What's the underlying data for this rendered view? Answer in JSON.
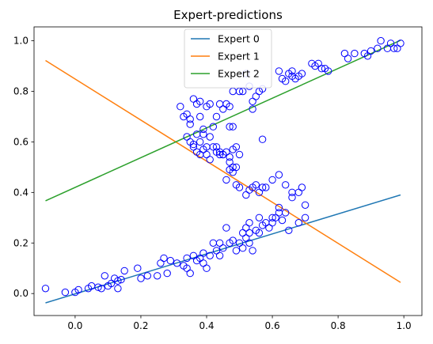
{
  "chart_data": {
    "type": "scatter",
    "title": "Expert-predictions",
    "xlabel": "",
    "ylabel": "",
    "xlim": [
      -0.125,
      1.055
    ],
    "ylim": [
      -0.087,
      1.055
    ],
    "x_ticks": [
      0.0,
      0.2,
      0.4,
      0.6,
      0.8,
      1.0
    ],
    "x_tick_labels": [
      "0.0",
      "0.2",
      "0.4",
      "0.6",
      "0.8",
      "1.0"
    ],
    "y_ticks": [
      0.0,
      0.2,
      0.4,
      0.6,
      0.8,
      1.0
    ],
    "y_tick_labels": [
      "0.0",
      "0.2",
      "0.4",
      "0.6",
      "0.8",
      "1.0"
    ],
    "grid": false,
    "legend_position": "top-center",
    "series": [
      {
        "name": "Expert 0",
        "kind": "line",
        "color": "#1f77b4",
        "x": [
          -0.09,
          0.99
        ],
        "y": [
          -0.037,
          0.39
        ]
      },
      {
        "name": "Expert 1",
        "kind": "line",
        "color": "#ff7f0e",
        "x": [
          -0.09,
          0.99
        ],
        "y": [
          0.922,
          0.044
        ]
      },
      {
        "name": "Expert 2",
        "kind": "line",
        "color": "#2ca02c",
        "x": [
          -0.09,
          0.99
        ],
        "y": [
          0.367,
          1.002
        ]
      },
      {
        "kind": "scatter",
        "marker": "open-circle",
        "color": "#0000ff",
        "points": [
          [
            -0.09,
            0.02
          ],
          [
            -0.03,
            0.005
          ],
          [
            0.0,
            0.005
          ],
          [
            0.01,
            0.015
          ],
          [
            0.04,
            0.02
          ],
          [
            0.05,
            0.03
          ],
          [
            0.07,
            0.025
          ],
          [
            0.08,
            0.02
          ],
          [
            0.09,
            0.07
          ],
          [
            0.1,
            0.03
          ],
          [
            0.11,
            0.04
          ],
          [
            0.12,
            0.06
          ],
          [
            0.13,
            0.05
          ],
          [
            0.14,
            0.055
          ],
          [
            0.13,
            0.02
          ],
          [
            0.15,
            0.09
          ],
          [
            0.19,
            0.1
          ],
          [
            0.2,
            0.06
          ],
          [
            0.22,
            0.07
          ],
          [
            0.25,
            0.07
          ],
          [
            0.26,
            0.12
          ],
          [
            0.27,
            0.14
          ],
          [
            0.28,
            0.08
          ],
          [
            0.29,
            0.13
          ],
          [
            0.31,
            0.12
          ],
          [
            0.33,
            0.11
          ],
          [
            0.34,
            0.1
          ],
          [
            0.34,
            0.14
          ],
          [
            0.35,
            0.08
          ],
          [
            0.36,
            0.15
          ],
          [
            0.37,
            0.13
          ],
          [
            0.38,
            0.14
          ],
          [
            0.39,
            0.12
          ],
          [
            0.39,
            0.16
          ],
          [
            0.4,
            0.1
          ],
          [
            0.41,
            0.15
          ],
          [
            0.42,
            0.2
          ],
          [
            0.43,
            0.17
          ],
          [
            0.44,
            0.15
          ],
          [
            0.44,
            0.2
          ],
          [
            0.45,
            0.18
          ],
          [
            0.46,
            0.26
          ],
          [
            0.47,
            0.2
          ],
          [
            0.48,
            0.21
          ],
          [
            0.49,
            0.17
          ],
          [
            0.5,
            0.2
          ],
          [
            0.51,
            0.24
          ],
          [
            0.51,
            0.18
          ],
          [
            0.52,
            0.26
          ],
          [
            0.52,
            0.22
          ],
          [
            0.53,
            0.24
          ],
          [
            0.53,
            0.2
          ],
          [
            0.53,
            0.28
          ],
          [
            0.54,
            0.17
          ],
          [
            0.55,
            0.25
          ],
          [
            0.56,
            0.24
          ],
          [
            0.56,
            0.3
          ],
          [
            0.57,
            0.27
          ],
          [
            0.58,
            0.28
          ],
          [
            0.6,
            0.28
          ],
          [
            0.61,
            0.3
          ],
          [
            0.62,
            0.32
          ],
          [
            0.63,
            0.29
          ],
          [
            0.65,
            0.25
          ],
          [
            0.68,
            0.28
          ],
          [
            0.7,
            0.3
          ],
          [
            0.7,
            0.35
          ],
          [
            0.6,
            0.3
          ],
          [
            0.59,
            0.26
          ],
          [
            0.62,
            0.34
          ],
          [
            0.64,
            0.32
          ],
          [
            0.66,
            0.38
          ],
          [
            0.68,
            0.4
          ],
          [
            0.69,
            0.42
          ],
          [
            0.66,
            0.4
          ],
          [
            0.64,
            0.43
          ],
          [
            0.62,
            0.47
          ],
          [
            0.6,
            0.45
          ],
          [
            0.58,
            0.42
          ],
          [
            0.57,
            0.42
          ],
          [
            0.56,
            0.4
          ],
          [
            0.55,
            0.43
          ],
          [
            0.54,
            0.42
          ],
          [
            0.53,
            0.41
          ],
          [
            0.52,
            0.39
          ],
          [
            0.5,
            0.42
          ],
          [
            0.49,
            0.43
          ],
          [
            0.48,
            0.5
          ],
          [
            0.47,
            0.52
          ],
          [
            0.46,
            0.45
          ],
          [
            0.45,
            0.55
          ],
          [
            0.44,
            0.56
          ],
          [
            0.43,
            0.56
          ],
          [
            0.42,
            0.58
          ],
          [
            0.41,
            0.53
          ],
          [
            0.4,
            0.55
          ],
          [
            0.39,
            0.57
          ],
          [
            0.38,
            0.6
          ],
          [
            0.37,
            0.63
          ],
          [
            0.36,
            0.58
          ],
          [
            0.35,
            0.6
          ],
          [
            0.34,
            0.62
          ],
          [
            0.36,
            0.59
          ],
          [
            0.37,
            0.56
          ],
          [
            0.38,
            0.55
          ],
          [
            0.39,
            0.63
          ],
          [
            0.4,
            0.58
          ],
          [
            0.41,
            0.62
          ],
          [
            0.43,
            0.58
          ],
          [
            0.44,
            0.55
          ],
          [
            0.45,
            0.55
          ],
          [
            0.46,
            0.56
          ],
          [
            0.47,
            0.54
          ],
          [
            0.48,
            0.57
          ],
          [
            0.49,
            0.58
          ],
          [
            0.5,
            0.55
          ],
          [
            0.49,
            0.5
          ],
          [
            0.48,
            0.48
          ],
          [
            0.47,
            0.49
          ],
          [
            0.57,
            0.61
          ],
          [
            0.32,
            0.74
          ],
          [
            0.33,
            0.7
          ],
          [
            0.34,
            0.71
          ],
          [
            0.35,
            0.69
          ],
          [
            0.36,
            0.77
          ],
          [
            0.37,
            0.75
          ],
          [
            0.38,
            0.76
          ],
          [
            0.38,
            0.7
          ],
          [
            0.39,
            0.65
          ],
          [
            0.4,
            0.74
          ],
          [
            0.41,
            0.75
          ],
          [
            0.42,
            0.66
          ],
          [
            0.43,
            0.7
          ],
          [
            0.44,
            0.75
          ],
          [
            0.45,
            0.73
          ],
          [
            0.46,
            0.75
          ],
          [
            0.47,
            0.66
          ],
          [
            0.48,
            0.66
          ],
          [
            0.48,
            0.8
          ],
          [
            0.5,
            0.8
          ],
          [
            0.51,
            0.8
          ],
          [
            0.52,
            0.87
          ],
          [
            0.53,
            0.82
          ],
          [
            0.54,
            0.76
          ],
          [
            0.54,
            0.73
          ],
          [
            0.55,
            0.78
          ],
          [
            0.56,
            0.8
          ],
          [
            0.57,
            0.81
          ],
          [
            0.62,
            0.88
          ],
          [
            0.63,
            0.85
          ],
          [
            0.64,
            0.84
          ],
          [
            0.65,
            0.87
          ],
          [
            0.66,
            0.88
          ],
          [
            0.66,
            0.86
          ],
          [
            0.67,
            0.85
          ],
          [
            0.68,
            0.86
          ],
          [
            0.69,
            0.87
          ],
          [
            0.72,
            0.91
          ],
          [
            0.73,
            0.9
          ],
          [
            0.74,
            0.91
          ],
          [
            0.75,
            0.89
          ],
          [
            0.76,
            0.89
          ],
          [
            0.77,
            0.88
          ],
          [
            0.82,
            0.95
          ],
          [
            0.83,
            0.93
          ],
          [
            0.85,
            0.95
          ],
          [
            0.88,
            0.95
          ],
          [
            0.89,
            0.94
          ],
          [
            0.9,
            0.96
          ],
          [
            0.92,
            0.97
          ],
          [
            0.93,
            1.0
          ],
          [
            0.95,
            0.97
          ],
          [
            0.96,
            0.99
          ],
          [
            0.97,
            0.97
          ],
          [
            0.98,
            0.97
          ],
          [
            0.99,
            0.99
          ],
          [
            0.35,
            0.67
          ],
          [
            0.47,
            0.74
          ]
        ]
      }
    ]
  }
}
